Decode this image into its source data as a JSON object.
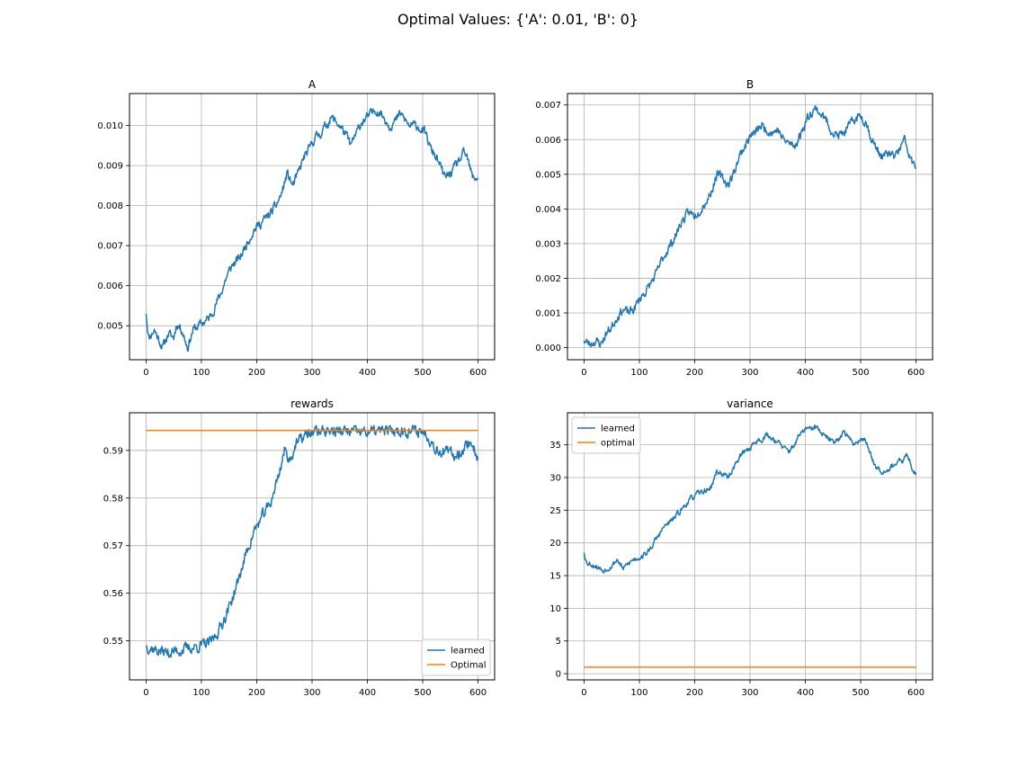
{
  "figure": {
    "suptitle": "Optimal Values: {'A': 0.01, 'B': 0}"
  },
  "colors": {
    "learned": "#1f77b4",
    "optimal": "#ff7f0e",
    "grid": "#b0b0b0"
  },
  "chart_data": [
    {
      "type": "line",
      "title": "A",
      "xlim": [
        -30,
        630
      ],
      "ylim": [
        0.00415,
        0.0108
      ],
      "xticks": [
        0,
        100,
        200,
        300,
        400,
        500,
        600
      ],
      "xtick_labels": [
        "0",
        "100",
        "200",
        "300",
        "400",
        "500",
        "600"
      ],
      "yticks": [
        0.005,
        0.006,
        0.007,
        0.008,
        0.009,
        0.01
      ],
      "ytick_labels": [
        "0.005",
        "0.006",
        "0.007",
        "0.008",
        "0.009",
        "0.010"
      ],
      "grid": true,
      "legend": null,
      "series": [
        {
          "color": "#1f77b4",
          "anchors": [
            [
              0,
              0.0053
            ],
            [
              5,
              0.0047
            ],
            [
              15,
              0.0049
            ],
            [
              25,
              0.0046
            ],
            [
              30,
              0.00445
            ],
            [
              40,
              0.0048
            ],
            [
              50,
              0.0047
            ],
            [
              55,
              0.00505
            ],
            [
              65,
              0.0049
            ],
            [
              75,
              0.00445
            ],
            [
              85,
              0.0049
            ],
            [
              95,
              0.005
            ],
            [
              105,
              0.0051
            ],
            [
              115,
              0.0052
            ],
            [
              125,
              0.0055
            ],
            [
              135,
              0.0058
            ],
            [
              145,
              0.0062
            ],
            [
              155,
              0.0065
            ],
            [
              170,
              0.0067
            ],
            [
              180,
              0.007
            ],
            [
              195,
              0.0074
            ],
            [
              210,
              0.0076
            ],
            [
              225,
              0.0078
            ],
            [
              235,
              0.008
            ],
            [
              245,
              0.0083
            ],
            [
              255,
              0.0088
            ],
            [
              265,
              0.0085
            ],
            [
              275,
              0.0088
            ],
            [
              285,
              0.0092
            ],
            [
              295,
              0.0094
            ],
            [
              305,
              0.0097
            ],
            [
              315,
              0.0098
            ],
            [
              325,
              0.01
            ],
            [
              335,
              0.0102
            ],
            [
              350,
              0.01
            ],
            [
              360,
              0.0098
            ],
            [
              370,
              0.0095
            ],
            [
              380,
              0.0098
            ],
            [
              390,
              0.0101
            ],
            [
              400,
              0.0102
            ],
            [
              415,
              0.0104
            ],
            [
              425,
              0.0103
            ],
            [
              440,
              0.01
            ],
            [
              450,
              0.0101
            ],
            [
              460,
              0.0103
            ],
            [
              475,
              0.01
            ],
            [
              490,
              0.01
            ],
            [
              505,
              0.0098
            ],
            [
              515,
              0.0094
            ],
            [
              525,
              0.0092
            ],
            [
              540,
              0.0087
            ],
            [
              550,
              0.0088
            ],
            [
              560,
              0.009
            ],
            [
              575,
              0.0093
            ],
            [
              580,
              0.0092
            ],
            [
              590,
              0.0087
            ],
            [
              600,
              0.0087
            ]
          ],
          "noise": 9.5e-05,
          "seed": 11
        }
      ]
    },
    {
      "type": "line",
      "title": "B",
      "xlim": [
        -30,
        630
      ],
      "ylim": [
        -0.00035,
        0.00733
      ],
      "xticks": [
        0,
        100,
        200,
        300,
        400,
        500,
        600
      ],
      "xtick_labels": [
        "0",
        "100",
        "200",
        "300",
        "400",
        "500",
        "600"
      ],
      "yticks": [
        0.0,
        0.001,
        0.002,
        0.003,
        0.004,
        0.005,
        0.006,
        0.007
      ],
      "ytick_labels": [
        "0.000",
        "0.001",
        "0.002",
        "0.003",
        "0.004",
        "0.005",
        "0.006",
        "0.007"
      ],
      "grid": true,
      "legend": null,
      "series": [
        {
          "color": "#1f77b4",
          "anchors": [
            [
              0,
              0.0002
            ],
            [
              10,
              0.0001
            ],
            [
              20,
              0.0002
            ],
            [
              30,
              0.0001
            ],
            [
              40,
              0.0004
            ],
            [
              50,
              0.0006
            ],
            [
              60,
              0.0009
            ],
            [
              70,
              0.0011
            ],
            [
              80,
              0.001
            ],
            [
              90,
              0.0011
            ],
            [
              100,
              0.0014
            ],
            [
              115,
              0.0017
            ],
            [
              130,
              0.0021
            ],
            [
              140,
              0.0025
            ],
            [
              150,
              0.0028
            ],
            [
              165,
              0.0032
            ],
            [
              175,
              0.0036
            ],
            [
              190,
              0.0039
            ],
            [
              200,
              0.0038
            ],
            [
              210,
              0.004
            ],
            [
              220,
              0.0042
            ],
            [
              230,
              0.0045
            ],
            [
              240,
              0.005
            ],
            [
              250,
              0.0049
            ],
            [
              260,
              0.0047
            ],
            [
              270,
              0.005
            ],
            [
              280,
              0.0055
            ],
            [
              290,
              0.0058
            ],
            [
              300,
              0.0061
            ],
            [
              310,
              0.0062
            ],
            [
              320,
              0.0064
            ],
            [
              330,
              0.0063
            ],
            [
              340,
              0.0062
            ],
            [
              350,
              0.0063
            ],
            [
              360,
              0.006
            ],
            [
              370,
              0.0059
            ],
            [
              380,
              0.0058
            ],
            [
              390,
              0.0061
            ],
            [
              400,
              0.0065
            ],
            [
              410,
              0.0068
            ],
            [
              420,
              0.0069
            ],
            [
              430,
              0.0067
            ],
            [
              440,
              0.0065
            ],
            [
              450,
              0.0062
            ],
            [
              460,
              0.0061
            ],
            [
              470,
              0.0062
            ],
            [
              480,
              0.0064
            ],
            [
              490,
              0.0066
            ],
            [
              500,
              0.0067
            ],
            [
              510,
              0.0065
            ],
            [
              520,
              0.006
            ],
            [
              530,
              0.0057
            ],
            [
              540,
              0.0055
            ],
            [
              550,
              0.0056
            ],
            [
              560,
              0.0055
            ],
            [
              570,
              0.0057
            ],
            [
              580,
              0.006
            ],
            [
              590,
              0.0054
            ],
            [
              600,
              0.0052
            ]
          ],
          "noise": 0.00011,
          "seed": 23
        }
      ]
    },
    {
      "type": "line",
      "title": "rewards",
      "xlim": [
        -30,
        630
      ],
      "ylim": [
        0.5418,
        0.5979
      ],
      "xticks": [
        0,
        100,
        200,
        300,
        400,
        500,
        600
      ],
      "xtick_labels": [
        "0",
        "100",
        "200",
        "300",
        "400",
        "500",
        "600"
      ],
      "yticks": [
        0.55,
        0.56,
        0.57,
        0.58,
        0.59
      ],
      "ytick_labels": [
        "0.55",
        "0.56",
        "0.57",
        "0.58",
        "0.59"
      ],
      "grid": true,
      "legend": {
        "location": "lower-right",
        "entries": [
          "learned",
          "Optimal"
        ]
      },
      "series": [
        {
          "name": "learned",
          "color": "#1f77b4",
          "anchors": [
            [
              0,
              0.549
            ],
            [
              20,
              0.548
            ],
            [
              40,
              0.5475
            ],
            [
              60,
              0.548
            ],
            [
              80,
              0.5485
            ],
            [
              100,
              0.549
            ],
            [
              115,
              0.5495
            ],
            [
              125,
              0.551
            ],
            [
              135,
              0.553
            ],
            [
              150,
              0.557
            ],
            [
              165,
              0.562
            ],
            [
              180,
              0.568
            ],
            [
              195,
              0.573
            ],
            [
              210,
              0.576
            ],
            [
              225,
              0.579
            ],
            [
              240,
              0.585
            ],
            [
              250,
              0.59
            ],
            [
              260,
              0.588
            ],
            [
              270,
              0.591
            ],
            [
              285,
              0.593
            ],
            [
              300,
              0.5938
            ],
            [
              320,
              0.5942
            ],
            [
              350,
              0.594
            ],
            [
              380,
              0.5938
            ],
            [
              420,
              0.594
            ],
            [
              460,
              0.5942
            ],
            [
              500,
              0.594
            ],
            [
              510,
              0.593
            ],
            [
              520,
              0.591
            ],
            [
              530,
              0.59
            ],
            [
              545,
              0.5895
            ],
            [
              560,
              0.589
            ],
            [
              575,
              0.5905
            ],
            [
              585,
              0.592
            ],
            [
              595,
              0.59
            ],
            [
              600,
              0.588
            ]
          ],
          "noise": 0.001,
          "seed": 37,
          "clip_max": 0.5952
        },
        {
          "name": "Optimal",
          "color": "#ff7f0e",
          "constant": 0.5942
        }
      ]
    },
    {
      "type": "line",
      "title": "variance",
      "xlim": [
        -30,
        630
      ],
      "ylim": [
        -0.95,
        39.9
      ],
      "xticks": [
        0,
        100,
        200,
        300,
        400,
        500,
        600
      ],
      "xtick_labels": [
        "0",
        "100",
        "200",
        "300",
        "400",
        "500",
        "600"
      ],
      "yticks": [
        0,
        5,
        10,
        15,
        20,
        25,
        30,
        35
      ],
      "ytick_labels": [
        "0",
        "5",
        "10",
        "15",
        "20",
        "25",
        "30",
        "35"
      ],
      "grid": true,
      "legend": {
        "location": "upper-left",
        "entries": [
          "learned",
          "optimal"
        ]
      },
      "series": [
        {
          "name": "learned",
          "color": "#1f77b4",
          "anchors": [
            [
              0,
              18.5
            ],
            [
              5,
              17.0
            ],
            [
              20,
              16.5
            ],
            [
              35,
              15.8
            ],
            [
              50,
              16.5
            ],
            [
              60,
              17.5
            ],
            [
              70,
              16.0
            ],
            [
              80,
              16.8
            ],
            [
              90,
              17.5
            ],
            [
              100,
              17.8
            ],
            [
              115,
              18.5
            ],
            [
              130,
              20.5
            ],
            [
              145,
              22.5
            ],
            [
              160,
              23.5
            ],
            [
              175,
              25.0
            ],
            [
              190,
              26.5
            ],
            [
              205,
              27.5
            ],
            [
              220,
              28.0
            ],
            [
              230,
              28.5
            ],
            [
              240,
              31.0
            ],
            [
              250,
              30.5
            ],
            [
              260,
              30.0
            ],
            [
              270,
              31.5
            ],
            [
              280,
              33.0
            ],
            [
              290,
              34.0
            ],
            [
              300,
              34.5
            ],
            [
              310,
              35.5
            ],
            [
              320,
              35.8
            ],
            [
              330,
              36.5
            ],
            [
              340,
              36.0
            ],
            [
              350,
              35.5
            ],
            [
              360,
              34.5
            ],
            [
              370,
              34.0
            ],
            [
              380,
              35.0
            ],
            [
              390,
              36.5
            ],
            [
              400,
              37.5
            ],
            [
              410,
              37.3
            ],
            [
              420,
              37.8
            ],
            [
              430,
              36.5
            ],
            [
              440,
              36.0
            ],
            [
              450,
              35.5
            ],
            [
              460,
              36.0
            ],
            [
              470,
              37.0
            ],
            [
              480,
              35.8
            ],
            [
              490,
              35.2
            ],
            [
              500,
              36.0
            ],
            [
              510,
              35.5
            ],
            [
              520,
              33.0
            ],
            [
              530,
              31.5
            ],
            [
              540,
              31.0
            ],
            [
              550,
              31.3
            ],
            [
              560,
              32.0
            ],
            [
              575,
              32.5
            ],
            [
              585,
              33.5
            ],
            [
              595,
              31.0
            ],
            [
              600,
              30.8
            ]
          ],
          "noise": 0.35,
          "seed": 53
        },
        {
          "name": "optimal",
          "color": "#ff7f0e",
          "constant": 1.0
        }
      ]
    }
  ]
}
